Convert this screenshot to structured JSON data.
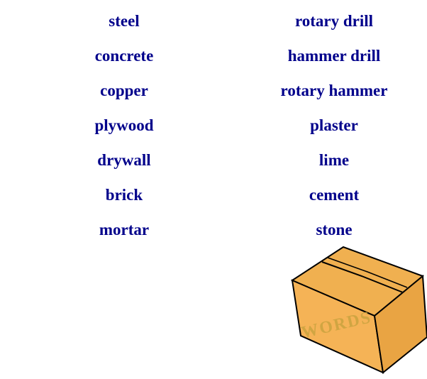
{
  "words": {
    "left": [
      "steel",
      "concrete",
      "copper",
      "plywood",
      "drywall",
      "brick",
      "mortar"
    ],
    "right": [
      "rotary drill",
      "hammer drill",
      "rotary hammer",
      "plaster",
      "lime",
      "cement",
      "stone"
    ]
  },
  "box": {
    "label": "WORDS"
  },
  "colors": {
    "word_text": "#00008b",
    "box_fill": "#f0b050",
    "box_outline": "#000000",
    "box_label": "#c0a040"
  }
}
